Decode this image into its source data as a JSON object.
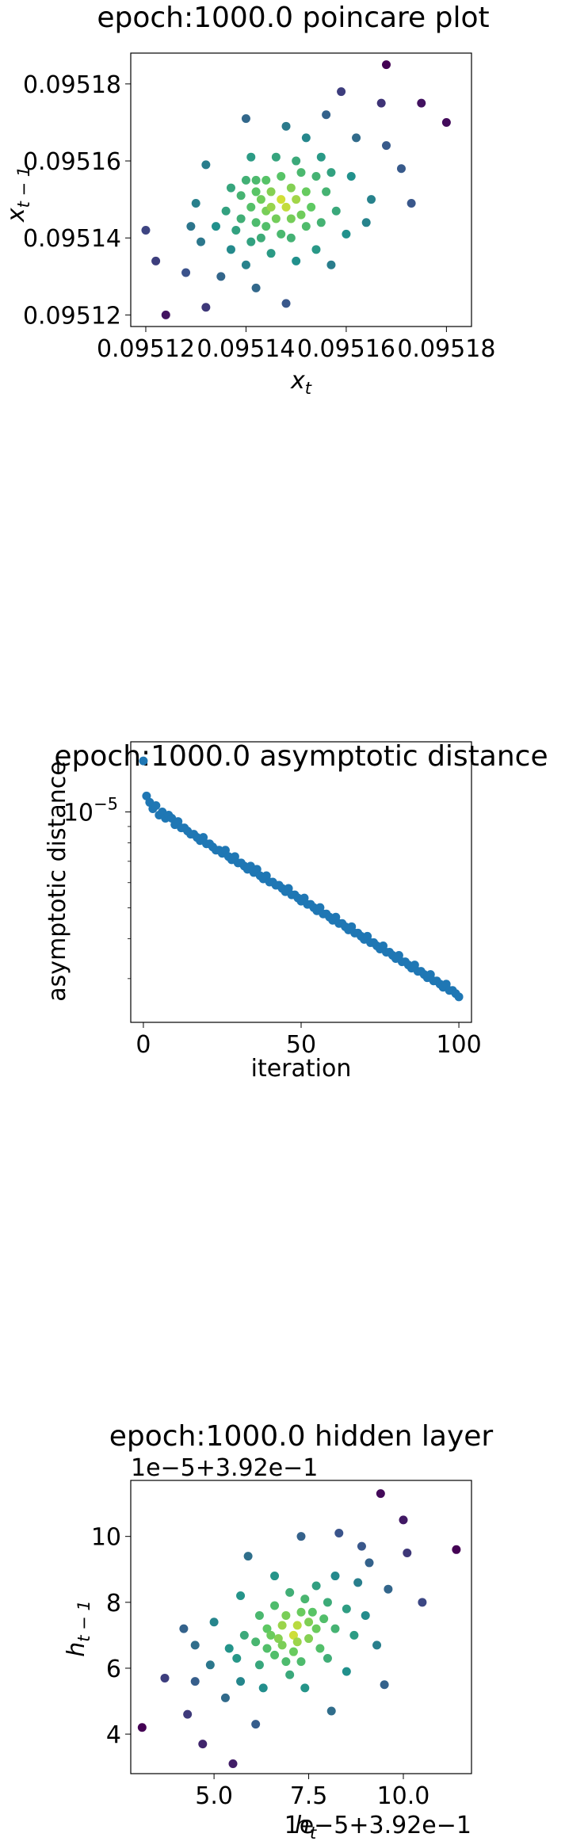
{
  "charts": [
    {
      "type": "scatter",
      "title": "epoch:1000.0 poincare plot",
      "xlabel": "x_t",
      "ylabel": "x_{t-1}",
      "xlim": [
        0.095117,
        0.095185
      ],
      "ylim": [
        0.095117,
        0.095188
      ],
      "xticks": [
        0.09512,
        0.09514,
        0.09516,
        0.09518
      ],
      "xtick_labels": [
        "0.09512",
        "0.09514",
        "0.09516",
        "0.09518"
      ],
      "yticks": [
        0.09512,
        0.09514,
        0.09516,
        0.09518
      ],
      "ytick_labels": [
        "0.09512",
        "0.09514",
        "0.09516",
        "0.09518"
      ],
      "yscale": "linear",
      "colormap": "viridis",
      "points": [
        [
          0.09512,
          0.095142
        ],
        [
          0.095122,
          0.095134
        ],
        [
          0.095124,
          0.09512
        ],
        [
          0.095128,
          0.095131
        ],
        [
          0.095129,
          0.095143
        ],
        [
          0.09513,
          0.095149
        ],
        [
          0.095131,
          0.095139
        ],
        [
          0.095132,
          0.095122
        ],
        [
          0.095132,
          0.095159
        ],
        [
          0.095134,
          0.095143
        ],
        [
          0.095135,
          0.09513
        ],
        [
          0.095136,
          0.095147
        ],
        [
          0.095137,
          0.095153
        ],
        [
          0.095137,
          0.095137
        ],
        [
          0.095138,
          0.095142
        ],
        [
          0.095139,
          0.095151
        ],
        [
          0.095139,
          0.095145
        ],
        [
          0.09514,
          0.095133
        ],
        [
          0.09514,
          0.095155
        ],
        [
          0.09514,
          0.095171
        ],
        [
          0.095141,
          0.095161
        ],
        [
          0.095141,
          0.095139
        ],
        [
          0.095141,
          0.095148
        ],
        [
          0.095142,
          0.095127
        ],
        [
          0.095142,
          0.095152
        ],
        [
          0.095142,
          0.095144
        ],
        [
          0.095142,
          0.095155
        ],
        [
          0.095143,
          0.09514
        ],
        [
          0.095143,
          0.09515
        ],
        [
          0.095144,
          0.095147
        ],
        [
          0.095144,
          0.095143
        ],
        [
          0.095144,
          0.095155
        ],
        [
          0.095145,
          0.095148
        ],
        [
          0.095145,
          0.095152
        ],
        [
          0.095145,
          0.095136
        ],
        [
          0.095146,
          0.095161
        ],
        [
          0.095146,
          0.095145
        ],
        [
          0.095147,
          0.09515
        ],
        [
          0.095147,
          0.095141
        ],
        [
          0.095147,
          0.095156
        ],
        [
          0.095148,
          0.095123
        ],
        [
          0.095148,
          0.095148
        ],
        [
          0.095148,
          0.095169
        ],
        [
          0.095149,
          0.095145
        ],
        [
          0.095149,
          0.095153
        ],
        [
          0.095149,
          0.09514
        ],
        [
          0.09515,
          0.095134
        ],
        [
          0.09515,
          0.09516
        ],
        [
          0.09515,
          0.09515
        ],
        [
          0.095151,
          0.095146
        ],
        [
          0.095151,
          0.095157
        ],
        [
          0.095152,
          0.095152
        ],
        [
          0.095152,
          0.095143
        ],
        [
          0.095152,
          0.095166
        ],
        [
          0.095153,
          0.095148
        ],
        [
          0.095154,
          0.095156
        ],
        [
          0.095154,
          0.095137
        ],
        [
          0.095155,
          0.095161
        ],
        [
          0.095155,
          0.095144
        ],
        [
          0.095156,
          0.095152
        ],
        [
          0.095156,
          0.095172
        ],
        [
          0.095157,
          0.095133
        ],
        [
          0.095157,
          0.095157
        ],
        [
          0.095158,
          0.095147
        ],
        [
          0.095159,
          0.095178
        ],
        [
          0.09516,
          0.095141
        ],
        [
          0.095161,
          0.095156
        ],
        [
          0.095162,
          0.095166
        ],
        [
          0.095164,
          0.095144
        ],
        [
          0.095165,
          0.09515
        ],
        [
          0.095167,
          0.095175
        ],
        [
          0.095168,
          0.095185
        ],
        [
          0.095168,
          0.095164
        ],
        [
          0.095171,
          0.095158
        ],
        [
          0.095173,
          0.095149
        ],
        [
          0.095175,
          0.095175
        ],
        [
          0.09518,
          0.09517
        ]
      ]
    },
    {
      "type": "scatter",
      "title": "epoch:1000.0 asymptotic distance",
      "xlabel": "iteration",
      "ylabel": "asymptotic distance",
      "xlim": [
        -4,
        104
      ],
      "yscale": "log",
      "ylim_log10": [
        -5.66,
        -4.78
      ],
      "xticks": [
        0,
        50,
        100
      ],
      "xtick_labels": [
        "0",
        "50",
        "100"
      ],
      "ytick_labels": [
        {
          "value": 1e-05,
          "base": "10",
          "exp": "−5"
        }
      ],
      "color": "#1f77b4",
      "x_start": 0,
      "x_step": 1,
      "log10_values": [
        -4.84,
        -4.95,
        -4.97,
        -4.99,
        -4.98,
        -5.01,
        -5.0,
        -5.02,
        -5.01,
        -5.02,
        -5.04,
        -5.03,
        -5.05,
        -5.05,
        -5.06,
        -5.07,
        -5.07,
        -5.08,
        -5.09,
        -5.08,
        -5.1,
        -5.1,
        -5.11,
        -5.12,
        -5.12,
        -5.13,
        -5.12,
        -5.14,
        -5.15,
        -5.14,
        -5.16,
        -5.16,
        -5.17,
        -5.18,
        -5.17,
        -5.19,
        -5.18,
        -5.2,
        -5.21,
        -5.2,
        -5.22,
        -5.22,
        -5.23,
        -5.23,
        -5.24,
        -5.25,
        -5.24,
        -5.26,
        -5.26,
        -5.27,
        -5.28,
        -5.27,
        -5.29,
        -5.29,
        -5.3,
        -5.31,
        -5.3,
        -5.32,
        -5.32,
        -5.33,
        -5.34,
        -5.33,
        -5.35,
        -5.35,
        -5.36,
        -5.37,
        -5.36,
        -5.38,
        -5.38,
        -5.39,
        -5.4,
        -5.39,
        -5.41,
        -5.41,
        -5.42,
        -5.43,
        -5.42,
        -5.44,
        -5.44,
        -5.45,
        -5.46,
        -5.45,
        -5.47,
        -5.47,
        -5.48,
        -5.49,
        -5.48,
        -5.5,
        -5.5,
        -5.51,
        -5.52,
        -5.51,
        -5.53,
        -5.53,
        -5.54,
        -5.55,
        -5.54,
        -5.56,
        -5.56,
        -5.57,
        -5.58
      ]
    },
    {
      "type": "scatter",
      "title": "epoch:1000.0 hidden layer",
      "xlabel": "h_t",
      "ylabel": "h_{t-1}",
      "x_offset_text": "1e−5+3.92e−1",
      "y_offset_text": "1e−5+3.92e−1",
      "xlim": [
        2.8,
        11.8
      ],
      "ylim": [
        2.8,
        11.7
      ],
      "xticks": [
        5.0,
        7.5,
        10.0
      ],
      "xtick_labels": [
        "5.0",
        "7.5",
        "10.0"
      ],
      "yticks": [
        4,
        6,
        8,
        10
      ],
      "ytick_labels": [
        "4",
        "6",
        "8",
        "10"
      ],
      "yscale": "linear",
      "colormap": "viridis",
      "points": [
        [
          3.1,
          4.2
        ],
        [
          3.7,
          5.7
        ],
        [
          4.2,
          7.2
        ],
        [
          4.3,
          4.6
        ],
        [
          4.5,
          6.7
        ],
        [
          4.5,
          5.6
        ],
        [
          4.7,
          3.7
        ],
        [
          4.9,
          6.1
        ],
        [
          5.0,
          7.4
        ],
        [
          5.3,
          5.1
        ],
        [
          5.4,
          6.6
        ],
        [
          5.5,
          3.1
        ],
        [
          5.6,
          6.3
        ],
        [
          5.7,
          5.6
        ],
        [
          5.7,
          8.2
        ],
        [
          5.8,
          7.0
        ],
        [
          5.9,
          9.4
        ],
        [
          6.1,
          4.3
        ],
        [
          6.1,
          6.8
        ],
        [
          6.2,
          7.6
        ],
        [
          6.2,
          6.1
        ],
        [
          6.3,
          5.4
        ],
        [
          6.4,
          7.2
        ],
        [
          6.4,
          6.6
        ],
        [
          6.5,
          7.0
        ],
        [
          6.6,
          8.8
        ],
        [
          6.6,
          6.4
        ],
        [
          6.6,
          7.9
        ],
        [
          6.7,
          6.9
        ],
        [
          6.8,
          7.3
        ],
        [
          6.8,
          6.7
        ],
        [
          6.9,
          6.2
        ],
        [
          6.9,
          7.6
        ],
        [
          7.0,
          5.8
        ],
        [
          7.0,
          8.3
        ],
        [
          7.1,
          7.0
        ],
        [
          7.1,
          6.5
        ],
        [
          7.2,
          7.3
        ],
        [
          7.2,
          6.8
        ],
        [
          7.3,
          10.0
        ],
        [
          7.3,
          7.7
        ],
        [
          7.3,
          6.2
        ],
        [
          7.4,
          5.4
        ],
        [
          7.4,
          8.1
        ],
        [
          7.5,
          7.4
        ],
        [
          7.5,
          6.9
        ],
        [
          7.6,
          7.7
        ],
        [
          7.7,
          7.2
        ],
        [
          7.7,
          8.5
        ],
        [
          7.8,
          6.6
        ],
        [
          7.9,
          7.5
        ],
        [
          8.0,
          8.0
        ],
        [
          8.0,
          6.3
        ],
        [
          8.1,
          4.7
        ],
        [
          8.2,
          8.8
        ],
        [
          8.2,
          7.2
        ],
        [
          8.3,
          10.1
        ],
        [
          8.5,
          7.8
        ],
        [
          8.5,
          5.9
        ],
        [
          8.7,
          7.0
        ],
        [
          8.8,
          8.6
        ],
        [
          8.9,
          9.7
        ],
        [
          9.0,
          7.6
        ],
        [
          9.1,
          9.2
        ],
        [
          9.3,
          6.7
        ],
        [
          9.4,
          11.3
        ],
        [
          9.5,
          5.5
        ],
        [
          9.6,
          8.4
        ],
        [
          10.0,
          10.5
        ],
        [
          10.1,
          9.5
        ],
        [
          10.5,
          8.0
        ],
        [
          11.4,
          9.6
        ]
      ]
    }
  ]
}
